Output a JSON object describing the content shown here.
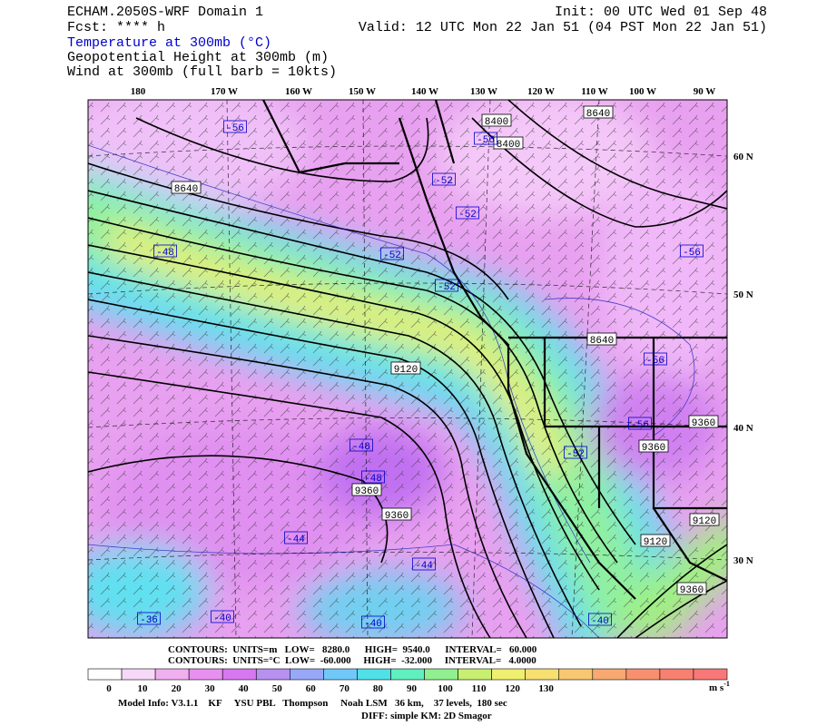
{
  "header": {
    "title": "ECHAM.2050S-WRF Domain 1",
    "forecast": "Fcst: **** h",
    "init": "Init: 00 UTC Wed 01 Sep 48",
    "valid": "Valid: 12 UTC Mon 22 Jan 51 (04 PST Mon 22 Jan 51)",
    "fields": [
      "Temperature at 300mb (°C)",
      "Geopotential Height at 300mb (m)",
      "Wind at 300mb (full barb = 10kts)"
    ]
  },
  "map": {
    "longitude_labels": [
      "180",
      "170 W",
      "160 W",
      "150 W",
      "140 W",
      "130 W",
      "120 W",
      "110 W",
      "100 W",
      "90 W"
    ],
    "latitude_labels": [
      "60 N",
      "50 N",
      "40 N",
      "30 N"
    ],
    "height_labels": [
      "8400",
      "8640",
      "8400",
      "8640",
      "9120",
      "8640",
      "9360",
      "9360",
      "9360",
      "9360",
      "9120",
      "9120",
      "9360"
    ],
    "temperature_labels": [
      "-56",
      "-56",
      "-52",
      "-52",
      "-48",
      "-52",
      "-52",
      "-56",
      "-56",
      "-56",
      "-52",
      "-48",
      "-48",
      "-44",
      "-44",
      "-36",
      "-40",
      "-40",
      "-40"
    ]
  },
  "contour_info": [
    "CONTOURS:  UNITS=m   LOW=   8280.0      HIGH=  9540.0      INTERVAL=   60.000",
    "CONTOURS:  UNITS=°C  LOW=  -60.000     HIGH=  -32.000     INTERVAL=   4.0000"
  ],
  "colorbar": {
    "ticks": [
      "0",
      "10",
      "20",
      "30",
      "40",
      "50",
      "60",
      "70",
      "80",
      "90",
      "100",
      "110",
      "120",
      "130"
    ],
    "unit": "m s",
    "unit_exponent": "-1",
    "colors": [
      "#ffffff",
      "#f8d8f8",
      "#f0b0f0",
      "#e890f0",
      "#d878f0",
      "#b890f0",
      "#98a8f8",
      "#70c8f8",
      "#50e0e8",
      "#60f0c0",
      "#90f090",
      "#c8f070",
      "#f0f070",
      "#f8e070",
      "#f8c870",
      "#f8a870",
      "#f89070",
      "#f88070",
      "#f87878"
    ]
  },
  "model_info": [
    "Model Info: V3.1.1    KF     YSU PBL   Thompson     Noah LSM   36 km,    37 levels,  180 sec",
    "DIFF: simple KM: 2D Smagor"
  ]
}
